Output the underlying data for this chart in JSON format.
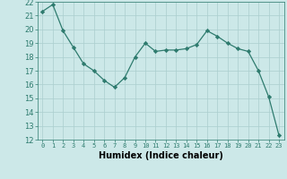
{
  "x": [
    0,
    1,
    2,
    3,
    4,
    5,
    6,
    7,
    8,
    9,
    10,
    11,
    12,
    13,
    14,
    15,
    16,
    17,
    18,
    19,
    20,
    21,
    22,
    23
  ],
  "y": [
    21.3,
    21.8,
    19.9,
    18.7,
    17.5,
    17.0,
    16.3,
    15.8,
    16.5,
    18.0,
    19.0,
    18.4,
    18.5,
    18.5,
    18.6,
    18.9,
    19.9,
    19.5,
    19.0,
    18.6,
    18.4,
    17.0,
    15.1,
    12.3
  ],
  "xlabel": "Humidex (Indice chaleur)",
  "ylim": [
    12,
    22
  ],
  "xlim": [
    -0.5,
    23.5
  ],
  "line_color": "#2e7b6e",
  "marker": "D",
  "marker_size": 2.2,
  "bg_color": "#cce8e8",
  "grid_color": "#aacece",
  "yticks": [
    12,
    13,
    14,
    15,
    16,
    17,
    18,
    19,
    20,
    21,
    22
  ],
  "xticks": [
    0,
    1,
    2,
    3,
    4,
    5,
    6,
    7,
    8,
    9,
    10,
    11,
    12,
    13,
    14,
    15,
    16,
    17,
    18,
    19,
    20,
    21,
    22,
    23
  ],
  "xlabel_fontsize": 7,
  "ytick_fontsize": 6,
  "xtick_fontsize": 5
}
